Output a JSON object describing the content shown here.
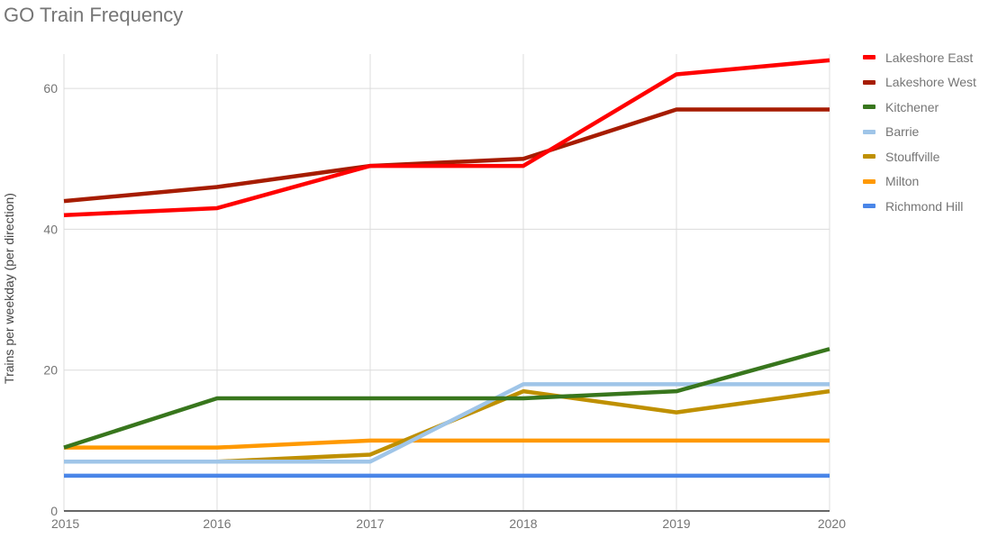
{
  "title": "GO Train Frequency",
  "chart_data": {
    "type": "line",
    "title": "GO Train Frequency",
    "xlabel": "",
    "ylabel": "Trains per weekday (per direction)",
    "x": [
      "2015",
      "2016",
      "2017",
      "2018",
      "2019",
      "2020"
    ],
    "ylim": [
      0,
      65
    ],
    "yticks": [
      0,
      20,
      40,
      60
    ],
    "grid": true,
    "legend_position": "right",
    "series": [
      {
        "name": "Lakeshore East",
        "color": "#ff0000",
        "values": [
          42,
          43,
          49,
          49,
          62,
          64
        ]
      },
      {
        "name": "Lakeshore West",
        "color": "#a61c00",
        "values": [
          44,
          46,
          49,
          50,
          57,
          57
        ]
      },
      {
        "name": "Kitchener",
        "color": "#38761d",
        "values": [
          9,
          16,
          16,
          16,
          17,
          23
        ]
      },
      {
        "name": "Barrie",
        "color": "#9fc5e8",
        "values": [
          7,
          7,
          7,
          18,
          18,
          18
        ]
      },
      {
        "name": "Stouffville",
        "color": "#bf9000",
        "values": [
          7,
          7,
          8,
          17,
          14,
          17
        ]
      },
      {
        "name": "Milton",
        "color": "#ff9900",
        "values": [
          9,
          9,
          10,
          10,
          10,
          10
        ]
      },
      {
        "name": "Richmond Hill",
        "color": "#4a86e8",
        "values": [
          5,
          5,
          5,
          5,
          5,
          5
        ]
      }
    ]
  }
}
